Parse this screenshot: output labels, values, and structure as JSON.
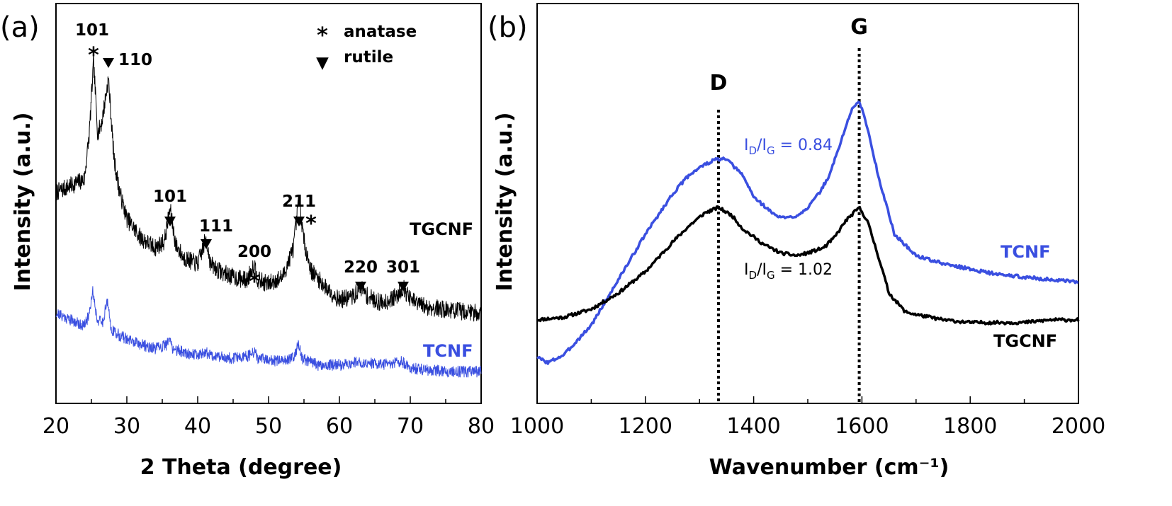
{
  "colors": {
    "tgcnf": "#000000",
    "tcnf": "#3a4fe0"
  },
  "chart_data": [
    {
      "type": "line",
      "panel_label": "(a)",
      "xlabel": "2 Theta (degree)",
      "ylabel": "Intensity (a.u.)",
      "xlim": [
        20,
        80
      ],
      "xticks": [
        "20",
        "30",
        "40",
        "50",
        "60",
        "70",
        "80"
      ],
      "y_ticks_shown": false,
      "legend": [
        {
          "marker": "*",
          "label": "anatase"
        },
        {
          "marker": "▼",
          "label": "rutile"
        }
      ],
      "peak_labels": [
        {
          "text": "101",
          "x": 25.3,
          "phase": "anatase"
        },
        {
          "text": "110",
          "x": 27.4,
          "phase": "rutile"
        },
        {
          "text": "101",
          "x": 36.1,
          "phase": "rutile"
        },
        {
          "text": "111",
          "x": 41.2,
          "phase": "rutile"
        },
        {
          "text": "200",
          "x": 48.0,
          "phase": "anatase"
        },
        {
          "text": "211",
          "x": 54.3,
          "phase": "rutile"
        },
        {
          "text": "220",
          "x": 63.0,
          "phase": "rutile"
        },
        {
          "text": "301",
          "x": 69.0,
          "phase": "rutile"
        }
      ],
      "series": [
        {
          "name": "TGCNF",
          "x": [
            20,
            22,
            24,
            24.7,
            25.3,
            25.9,
            26.5,
            27.4,
            28.2,
            29,
            30,
            32,
            34,
            35.3,
            36.1,
            36.9,
            38,
            40,
            40.6,
            41.2,
            41.8,
            43,
            45,
            47,
            47.5,
            48,
            48.5,
            50,
            52,
            53.5,
            54.3,
            55,
            56,
            58,
            60,
            62,
            63,
            64,
            66,
            68,
            69,
            70,
            72,
            75,
            80
          ],
          "y": [
            0.6,
            0.62,
            0.64,
            0.78,
            1.0,
            0.78,
            0.82,
            0.95,
            0.7,
            0.6,
            0.52,
            0.46,
            0.43,
            0.45,
            0.55,
            0.44,
            0.4,
            0.38,
            0.42,
            0.46,
            0.38,
            0.36,
            0.34,
            0.33,
            0.36,
            0.38,
            0.33,
            0.32,
            0.34,
            0.43,
            0.58,
            0.45,
            0.36,
            0.31,
            0.27,
            0.28,
            0.31,
            0.28,
            0.26,
            0.28,
            0.31,
            0.27,
            0.25,
            0.24,
            0.23
          ]
        },
        {
          "name": "TCNF",
          "x": [
            20,
            22,
            24,
            24.6,
            25.2,
            25.8,
            26.6,
            27.2,
            27.8,
            29,
            31,
            34,
            35.5,
            36,
            36.5,
            38,
            40,
            41,
            42,
            45,
            47.5,
            48,
            48.5,
            52,
            53.6,
            54.2,
            54.8,
            57,
            60,
            63,
            66,
            68.8,
            70,
            75,
            80
          ],
          "y": [
            0.23,
            0.21,
            0.19,
            0.22,
            0.3,
            0.21,
            0.2,
            0.27,
            0.18,
            0.16,
            0.14,
            0.12,
            0.13,
            0.15,
            0.12,
            0.11,
            0.1,
            0.11,
            0.1,
            0.09,
            0.1,
            0.11,
            0.09,
            0.08,
            0.1,
            0.13,
            0.09,
            0.07,
            0.07,
            0.08,
            0.07,
            0.08,
            0.06,
            0.05,
            0.05
          ]
        }
      ]
    },
    {
      "type": "line",
      "panel_label": "(b)",
      "xlabel": "Wavenumber (cm⁻¹)",
      "ylabel": "Intensity (a.u.)",
      "xlim": [
        1000,
        2000
      ],
      "xticks": [
        "1000",
        "1200",
        "1400",
        "1600",
        "1800",
        "2000"
      ],
      "y_ticks_shown": false,
      "reference_lines": [
        {
          "label": "D",
          "x": 1335
        },
        {
          "label": "G",
          "x": 1595
        }
      ],
      "annotations": [
        {
          "base": "I",
          "sub1": "D",
          "mid": "/I",
          "sub2": "G",
          "value": " = 0.84",
          "series": "TCNF"
        },
        {
          "base": "I",
          "sub1": "D",
          "mid": "/I",
          "sub2": "G",
          "value": " = 1.02",
          "series": "TGCNF"
        }
      ],
      "series": [
        {
          "name": "TCNF",
          "x": [
            1000,
            1020,
            1050,
            1100,
            1150,
            1200,
            1250,
            1280,
            1300,
            1330,
            1350,
            1380,
            1400,
            1440,
            1460,
            1480,
            1500,
            1520,
            1540,
            1560,
            1580,
            1595,
            1610,
            1630,
            1660,
            1700,
            1750,
            1800,
            1850,
            1900,
            1950,
            2000
          ],
          "y": [
            0.04,
            0.02,
            0.05,
            0.16,
            0.33,
            0.5,
            0.65,
            0.72,
            0.75,
            0.78,
            0.78,
            0.72,
            0.64,
            0.57,
            0.56,
            0.57,
            0.6,
            0.65,
            0.72,
            0.84,
            0.96,
            1.0,
            0.9,
            0.72,
            0.5,
            0.42,
            0.39,
            0.37,
            0.35,
            0.34,
            0.33,
            0.32
          ]
        },
        {
          "name": "TGCNF",
          "x": [
            1000,
            1050,
            1100,
            1150,
            1200,
            1250,
            1280,
            1310,
            1335,
            1360,
            1380,
            1420,
            1450,
            1480,
            1500,
            1530,
            1550,
            1570,
            1595,
            1610,
            1630,
            1650,
            1680,
            1700,
            1750,
            1800,
            1850,
            1900,
            1950,
            2000
          ],
          "y": [
            0.18,
            0.19,
            0.22,
            0.28,
            0.36,
            0.47,
            0.53,
            0.58,
            0.6,
            0.57,
            0.52,
            0.46,
            0.43,
            0.42,
            0.43,
            0.45,
            0.49,
            0.55,
            0.6,
            0.55,
            0.42,
            0.28,
            0.21,
            0.2,
            0.18,
            0.17,
            0.17,
            0.17,
            0.18,
            0.18
          ]
        }
      ]
    }
  ]
}
